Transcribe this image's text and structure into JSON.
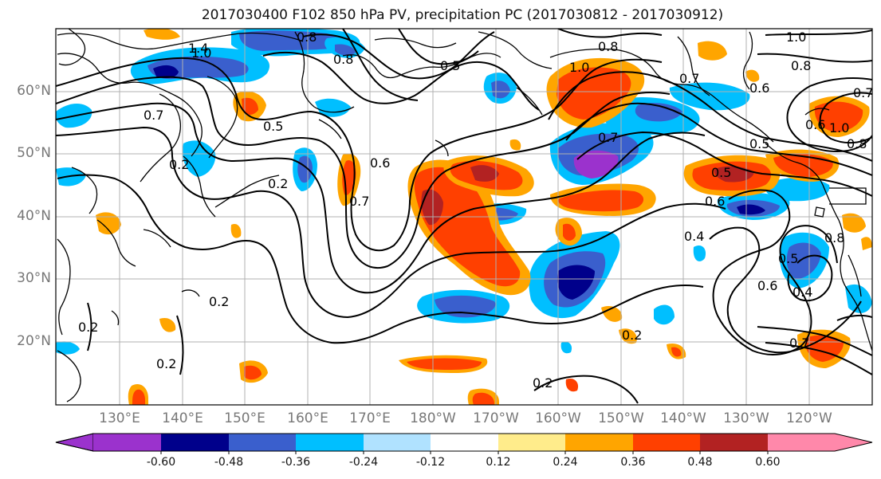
{
  "title": "2017030400 F102 850 hPa PV, precipitation PC (2017030812 - 2017030912)",
  "lat_labels": [
    "60°N",
    "50°N",
    "40°N",
    "30°N",
    "20°N"
  ],
  "lon_labels": [
    "130°E",
    "140°E",
    "150°E",
    "160°E",
    "170°E",
    "180°W",
    "170°W",
    "160°W",
    "150°W",
    "140°W",
    "130°W",
    "120°W"
  ],
  "colorbar": {
    "colors": [
      "#9b32cd",
      "#00008b",
      "#3a5fcd",
      "#00bfff",
      "#b0e2ff",
      "#ffffff",
      "#ffec8b",
      "#ffa500",
      "#ff4000",
      "#b22222",
      "#ff88aa"
    ],
    "labels": [
      "-0.60",
      "-0.48",
      "-0.36",
      "-0.24",
      "-0.12",
      "0.12",
      "0.24",
      "0.36",
      "0.48",
      "0.60"
    ]
  },
  "contour_labels": [
    "1.4",
    "1.0",
    "0.8",
    "0.8",
    "0.5",
    "0.8",
    "1.0",
    "1.0",
    "0.8",
    "0.7",
    "0.6",
    "0.7",
    "0.6",
    "1.0",
    "0.8",
    "0.5",
    "0.7",
    "0.2",
    "0.5",
    "0.5",
    "0.6",
    "0.6",
    "0.2",
    "0.7",
    "0.7",
    "0.4",
    "0.5",
    "0.6",
    "0.4",
    "0.2",
    "0.2",
    "0.2",
    "0.2",
    "0.2",
    "0.7",
    "0.8"
  ],
  "map_colors": {
    "coast": "#000000",
    "contour": "#000000",
    "grid": "#b0b0b0"
  }
}
